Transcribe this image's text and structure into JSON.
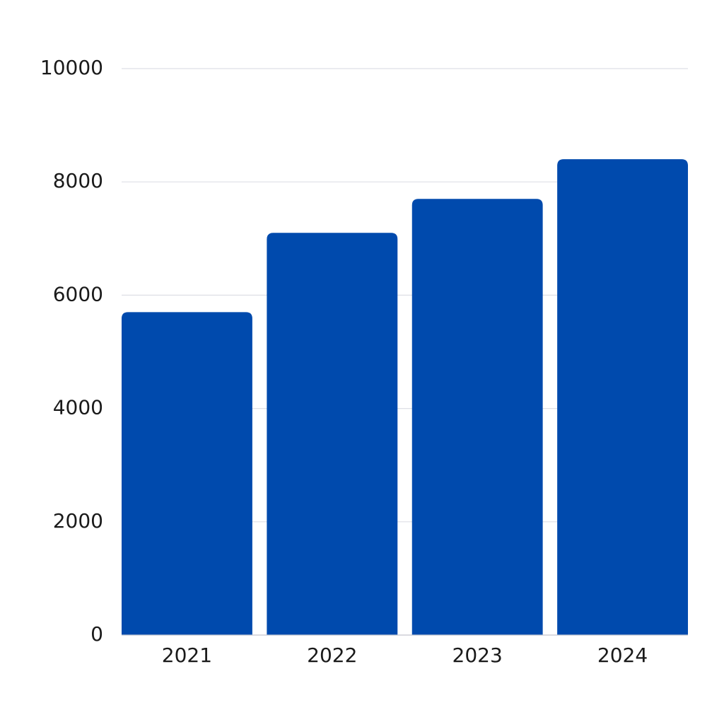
{
  "chart_data": {
    "type": "bar",
    "categories": [
      "2021",
      "2022",
      "2023",
      "2024"
    ],
    "values": [
      5700,
      7100,
      7700,
      8400
    ],
    "color": "#004aad",
    "ylim": [
      0,
      10000
    ],
    "yticks": [
      0,
      2000,
      4000,
      6000,
      8000,
      10000
    ],
    "grid": true
  }
}
